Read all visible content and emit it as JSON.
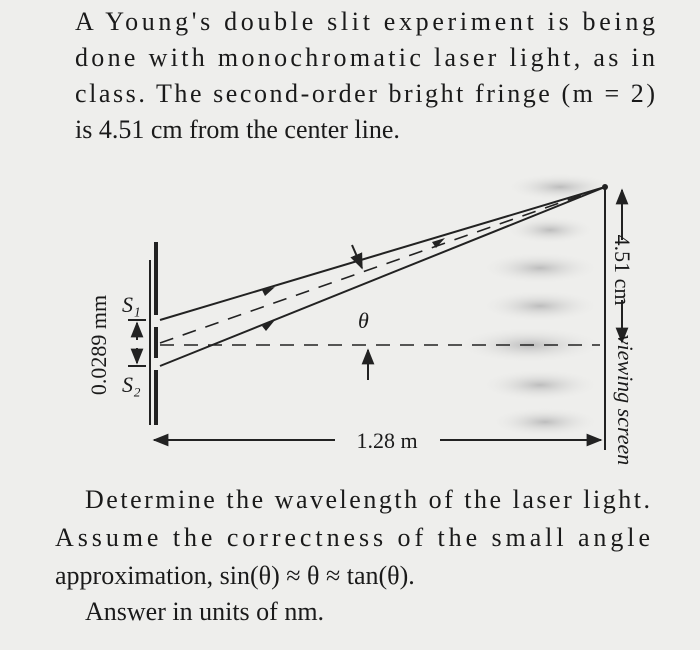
{
  "problem": {
    "intro_lines": [
      "A Young's double slit experiment is being",
      "done with monochromatic laser light, as in",
      "class. The second-order bright fringe (m = 2)",
      "is 4.51 cm from the center line."
    ],
    "diagram": {
      "slit_1": "S₁",
      "slit_2": "S₂",
      "slit_separation": "0.0289 mm",
      "angle": "θ",
      "fringe_distance": "4.51 cm",
      "screen_distance": "1.28 m",
      "screen_label": "viewing screen"
    },
    "question_lines": [
      "Determine the wavelength of the laser light.",
      "Assume the correctness of the small angle",
      "approximation, sin(θ) ≈ θ ≈ tan(θ).",
      "Answer in units of nm."
    ]
  }
}
